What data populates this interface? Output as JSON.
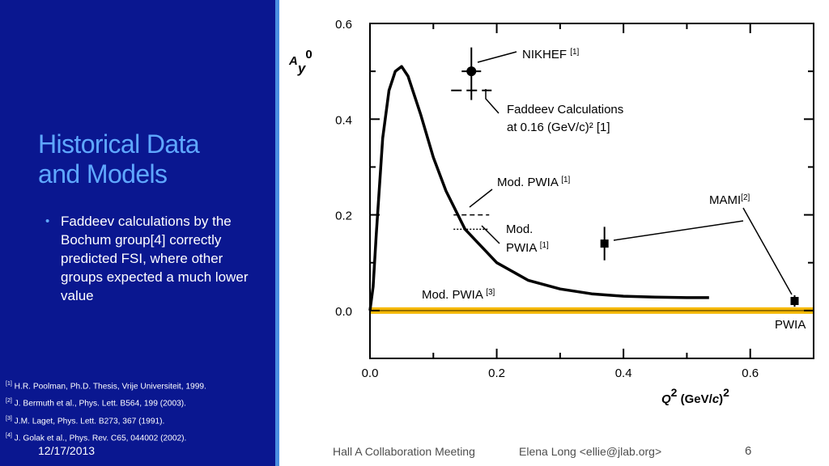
{
  "slide": {
    "title_line1": "Historical Data",
    "title_line2": "and Models",
    "bullet_marker": "•",
    "bullet_text": "Faddeev calculations by the Bochum group[4] correctly predicted FSI, where other groups expected a much lower value",
    "references": [
      {
        "num": "[1]",
        "text": "H.R. Poolman, Ph.D. Thesis, Vrije Universiteit, 1999."
      },
      {
        "num": "[2]",
        "text": "J. Bermuth et al., Phys. Lett. B564, 199 (2003)."
      },
      {
        "num": "[3]",
        "text": "J.M. Laget, Phys. Lett. B273, 367 (1991)."
      },
      {
        "num": "[4]",
        "text": "J. Golak et al., Phys. Rev. C65, 044002 (2002)."
      }
    ],
    "footer": {
      "date": "12/17/2013",
      "meeting": "Hall A Collaboration Meeting",
      "author": "Elena Long <ellie@jlab.org>",
      "page": "6"
    },
    "colors": {
      "panel": "#0a1790",
      "title": "#5fa8ff",
      "band": "#f5b800"
    }
  },
  "chart_data": {
    "type": "scatter",
    "xlabel": "Q² (GeV/c)²",
    "ylabel": "Ay⁰",
    "xlim": [
      0,
      0.7
    ],
    "ylim": [
      -0.1,
      0.6
    ],
    "xticks": [
      "0.0",
      "0.2",
      "0.4",
      "0.6"
    ],
    "yticks": [
      "0.0",
      "0.2",
      "0.4",
      "0.6"
    ],
    "series": [
      {
        "name": "NIKHEF [1]",
        "points": [
          {
            "x": 0.16,
            "y": 0.5,
            "yerr": 0.05
          }
        ]
      },
      {
        "name": "MAMI[2]",
        "points": [
          {
            "x": 0.37,
            "y": 0.14,
            "yerr": 0.035
          },
          {
            "x": 0.67,
            "y": 0.02,
            "yerr": 0.012
          }
        ]
      }
    ],
    "curves": [
      {
        "name": "Mod. PWIA [3]",
        "x": [
          0.0,
          0.005,
          0.01,
          0.02,
          0.03,
          0.04,
          0.05,
          0.06,
          0.08,
          0.1,
          0.12,
          0.15,
          0.2,
          0.25,
          0.3,
          0.35,
          0.4,
          0.45,
          0.5,
          0.535
        ],
        "y": [
          0.0,
          0.05,
          0.16,
          0.36,
          0.46,
          0.5,
          0.51,
          0.49,
          0.41,
          0.32,
          0.25,
          0.17,
          0.1,
          0.063,
          0.045,
          0.035,
          0.03,
          0.028,
          0.027,
          0.027
        ]
      }
    ],
    "markers": [
      {
        "name": "Faddeev Calculations at 0.16 (GeV/c)2 [1]",
        "x": 0.16,
        "y": 0.46,
        "style": "dashed"
      },
      {
        "name": "Mod. PWIA [1]",
        "x": 0.16,
        "y": 0.2,
        "style": "dashed"
      },
      {
        "name": "Mod. PWIA [1]",
        "x": 0.16,
        "y": 0.17,
        "style": "dotted"
      }
    ],
    "band": {
      "name": "PWIA",
      "y": 0.0
    },
    "annotations": [
      {
        "label": "NIKHEF",
        "ref": "[1]"
      },
      {
        "label": "Faddeev Calculations",
        "label2": "at 0.16 (GeV/c)² [1]"
      },
      {
        "label": "Mod. PWIA",
        "ref": "[1]"
      },
      {
        "label": "Mod.",
        "label2": "PWIA",
        "ref": "[1]"
      },
      {
        "label": "Mod. PWIA",
        "ref": "[3]"
      },
      {
        "label": "MAMI",
        "ref": "[2]"
      },
      {
        "label": "PWIA"
      }
    ],
    "grid": false,
    "legend": "none"
  }
}
